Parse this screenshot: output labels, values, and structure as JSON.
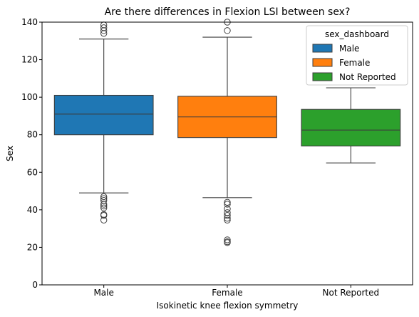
{
  "chart_data": {
    "type": "box",
    "title": "Are there differences in Flexion LSI between sex?",
    "xlabel": "Isokinetic knee flexion symmetry",
    "ylabel": "Sex",
    "ylim": [
      0,
      140
    ],
    "yticks": [
      0,
      20,
      40,
      60,
      80,
      100,
      120,
      140
    ],
    "grid": false,
    "legend": {
      "title": "sex_dashboard",
      "placement": "top-right"
    },
    "categories": [
      "Male",
      "Female",
      "Not Reported"
    ],
    "series": [
      {
        "name": "Male",
        "color": "#1f77b4",
        "q1": 80.0,
        "median": 91.0,
        "q3": 101.0,
        "whisker_low": 49.0,
        "whisker_high": 131.0,
        "outliers": [
          47.0,
          46.0,
          45.0,
          43.0,
          42.0,
          41.0,
          37.5,
          37.0,
          34.5,
          134.0,
          135.5,
          137.0,
          138.5
        ]
      },
      {
        "name": "Female",
        "color": "#ff7f0e",
        "q1": 78.5,
        "median": 89.5,
        "q3": 100.5,
        "whisker_low": 46.5,
        "whisker_high": 132.0,
        "outliers": [
          44.0,
          43.0,
          40.5,
          38.5,
          37.0,
          35.5,
          34.5,
          24.0,
          23.0,
          22.5,
          135.5,
          140.0
        ]
      },
      {
        "name": "Not Reported",
        "color": "#2ca02c",
        "q1": 74.0,
        "median": 82.5,
        "q3": 93.5,
        "whisker_low": 65.0,
        "whisker_high": 105.0,
        "outliers": []
      }
    ]
  }
}
